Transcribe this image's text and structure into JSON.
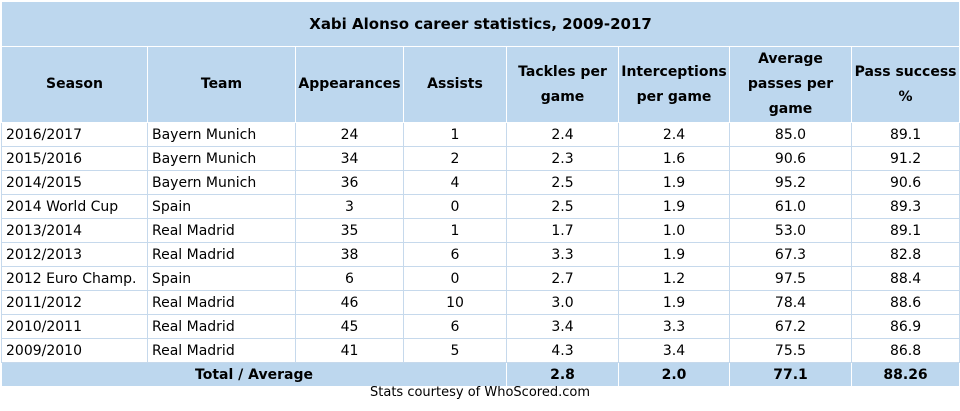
{
  "chart_data": {
    "type": "table",
    "title": "Xabi Alonso career statistics, 2009-2017",
    "columns": [
      "Season",
      "Team",
      "Appearances",
      "Assists",
      "Tackles per game",
      "Interceptions per game",
      "Average passes per game",
      "Pass success %"
    ],
    "rows": [
      [
        "2016/2017",
        "Bayern Munich",
        "24",
        "1",
        "2.4",
        "2.4",
        "85.0",
        "89.1"
      ],
      [
        "2015/2016",
        "Bayern Munich",
        "34",
        "2",
        "2.3",
        "1.6",
        "90.6",
        "91.2"
      ],
      [
        "2014/2015",
        "Bayern Munich",
        "36",
        "4",
        "2.5",
        "1.9",
        "95.2",
        "90.6"
      ],
      [
        "2014 World Cup",
        "Spain",
        "3",
        "0",
        "2.5",
        "1.9",
        "61.0",
        "89.3"
      ],
      [
        "2013/2014",
        "Real Madrid",
        "35",
        "1",
        "1.7",
        "1.0",
        "53.0",
        "89.1"
      ],
      [
        "2012/2013",
        "Real Madrid",
        "38",
        "6",
        "3.3",
        "1.9",
        "67.3",
        "82.8"
      ],
      [
        "2012 Euro Champ.",
        "Spain",
        "6",
        "0",
        "2.7",
        "1.2",
        "97.5",
        "88.4"
      ],
      [
        "2011/2012",
        "Real Madrid",
        "46",
        "10",
        "3.0",
        "1.9",
        "78.4",
        "88.6"
      ],
      [
        "2010/2011",
        "Real Madrid",
        "45",
        "6",
        "3.4",
        "3.3",
        "67.2",
        "86.9"
      ],
      [
        "2009/2010",
        "Real Madrid",
        "41",
        "5",
        "4.3",
        "3.4",
        "75.5",
        "86.8"
      ]
    ],
    "total": {
      "label": "Total / Average",
      "values": [
        "2.8",
        "2.0",
        "77.1",
        "88.26"
      ]
    }
  },
  "credit": "Stats courtesy of WhoScored.com",
  "colors": {
    "header_fill": "#bdd7ee",
    "row_border": "#c6d9ec"
  }
}
